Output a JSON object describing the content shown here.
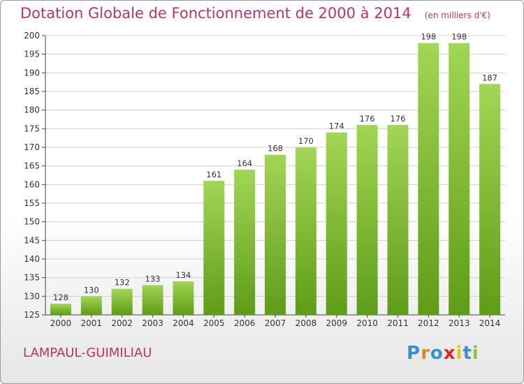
{
  "title": "Dotation Globale de Fonctionnement de 2000 à 2014",
  "unit": "(en milliers d'€)",
  "commune": "LAMPAUL-GUIMILIAU",
  "logo": {
    "letters": [
      "P",
      "r",
      "o",
      "x",
      "i",
      "t",
      "i"
    ],
    "colors": [
      "#3a8fd0",
      "#e08a1e",
      "#3a8fd0",
      "#e0281e",
      "#f2c01e",
      "#3a8fd0",
      "#8cc43a"
    ]
  },
  "colors": {
    "bar_top": "#a2d655",
    "bar_bottom": "#5f9c18",
    "grid": "#cfcfcf",
    "title": "#c0306a"
  },
  "chart_data": {
    "type": "bar",
    "title": "Dotation Globale de Fonctionnement de 2000 à 2014",
    "xlabel": "",
    "ylabel": "",
    "ylim": [
      125,
      200
    ],
    "yticks": [
      125,
      130,
      135,
      140,
      145,
      150,
      155,
      160,
      165,
      170,
      175,
      180,
      185,
      190,
      195,
      200
    ],
    "grid": true,
    "categories": [
      "2000",
      "2001",
      "2002",
      "2003",
      "2004",
      "2005",
      "2006",
      "2007",
      "2008",
      "2009",
      "2010",
      "2011",
      "2012",
      "2013",
      "2014"
    ],
    "values": [
      128,
      130,
      132,
      133,
      134,
      161,
      164,
      168,
      170,
      174,
      176,
      176,
      198,
      198,
      187
    ]
  }
}
